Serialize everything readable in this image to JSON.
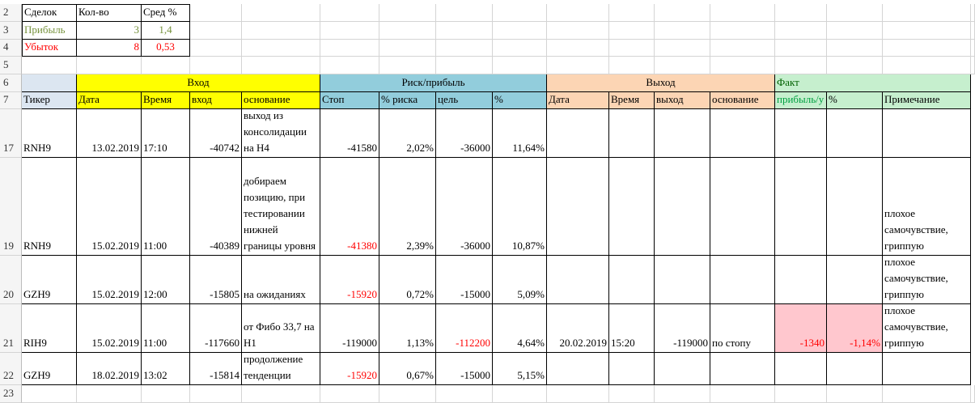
{
  "summary": {
    "header": [
      "Сделок",
      "Кол-во",
      "Сред %"
    ],
    "rows": [
      {
        "cells": [
          "Прибыль",
          "3",
          "1,4"
        ],
        "color": "#76923c"
      },
      {
        "cells": [
          "Убыток",
          "8",
          "0,53"
        ],
        "color": "#ff0000"
      }
    ]
  },
  "row_numbers": [
    "2",
    "3",
    "4",
    "5",
    "6",
    "7",
    "17",
    "19",
    "20",
    "21",
    "22",
    "23"
  ],
  "ticker_header": "Тикер",
  "ticker_color": "#dce6f1",
  "groups": [
    {
      "label": "Вход",
      "color": "#ffff00",
      "columns": [
        "Дата",
        "Время",
        "вход",
        "основание"
      ]
    },
    {
      "label": "Риск/прибыль",
      "color": "#92cddc",
      "columns": [
        "Стоп",
        "% риска",
        "цель",
        "%"
      ]
    },
    {
      "label": "Выход",
      "color": "#fcd5b4",
      "columns": [
        "Дата",
        "Время",
        "выход",
        "основание"
      ]
    },
    {
      "label": "Факт",
      "color": "#c6efce",
      "columns": [
        "прибыль/у",
        "%",
        "Примечание"
      ]
    }
  ],
  "rows": [
    {
      "cells": [
        "RNH9",
        "13.02.2019",
        "17:10",
        "-40742",
        "выход из консолидации на H4",
        "-41580",
        "2,02%",
        "-36000",
        "11,64%",
        null,
        null,
        null,
        null,
        null,
        null,
        null
      ]
    },
    {
      "cells": [
        "RNH9",
        "15.02.2019",
        "11:00",
        "-40389",
        "добираем позицию, при тестировании нижней границы уровня",
        {
          "text": "-41380",
          "color": "#ff0000"
        },
        "2,39%",
        "-36000",
        "10,87%",
        null,
        null,
        null,
        null,
        null,
        null,
        "плохое самочувствие, гриппую"
      ]
    },
    {
      "cells": [
        "GZH9",
        "15.02.2019",
        "12:00",
        "-15805",
        "на ожиданиях",
        {
          "text": "-15920",
          "color": "#ff0000"
        },
        "0,72%",
        "-15000",
        "5,09%",
        null,
        null,
        null,
        null,
        null,
        null,
        "плохое самочувствие, гриппую"
      ]
    },
    {
      "cells": [
        "RIH9",
        "15.02.2019",
        "11:00",
        "-117660",
        "от Фибо 33,7 на H1",
        "-119000",
        "1,13%",
        {
          "text": "-112200",
          "color": "#ff0000"
        },
        "4,64%",
        "20.02.2019",
        "15:20",
        "-119000",
        "по стопу",
        {
          "text": "-1340",
          "color": "#ff0000",
          "fill": "#ffc7ce"
        },
        {
          "text": "-1,14%",
          "color": "#ff0000",
          "fill": "#ffc7ce"
        },
        "плохое самочувствие, гриппую"
      ]
    },
    {
      "cells": [
        "GZH9",
        "18.02.2019",
        "13:02",
        "-15814",
        "продолжение тенденции",
        {
          "text": "-15920",
          "color": "#ff0000"
        },
        "0,67%",
        "-15000",
        "5,15%",
        null,
        null,
        null,
        null,
        null,
        null,
        null
      ]
    }
  ]
}
